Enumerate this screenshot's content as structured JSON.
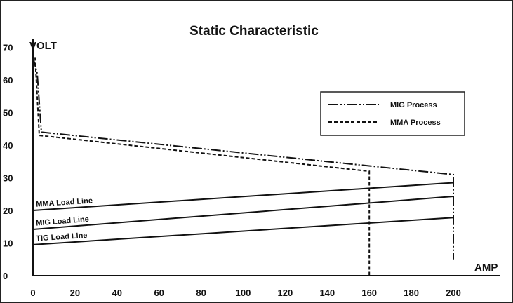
{
  "chart_data": {
    "type": "line",
    "title": "Static Characteristic",
    "xlabel": "AMP",
    "ylabel": "VOLT",
    "xlim": [
      0,
      210
    ],
    "ylim": [
      0,
      70
    ],
    "x_ticks": [
      0,
      20,
      40,
      60,
      80,
      100,
      120,
      140,
      160,
      180,
      200
    ],
    "y_ticks": [
      0,
      10,
      20,
      30,
      40,
      50,
      60,
      70
    ],
    "grid": false,
    "legend_position": "top-right",
    "series": [
      {
        "name": "MIG Process",
        "dash": "dash-dot-dot",
        "points": [
          [
            0,
            67
          ],
          [
            2,
            62
          ],
          [
            4,
            44
          ],
          [
            200,
            31
          ],
          [
            200,
            5
          ]
        ]
      },
      {
        "name": "MMA Process",
        "dash": "dashed",
        "points": [
          [
            1,
            67
          ],
          [
            3,
            43
          ],
          [
            160,
            32
          ],
          [
            160,
            0
          ]
        ]
      }
    ],
    "load_lines": [
      {
        "label": "MMA Load Line",
        "points": [
          [
            0,
            20
          ],
          [
            200,
            28.5
          ]
        ]
      },
      {
        "label": "MIG Load Line",
        "points": [
          [
            0,
            14.2
          ],
          [
            200,
            24.3
          ]
        ]
      },
      {
        "label": "TIG Load Line",
        "points": [
          [
            0,
            9.5
          ],
          [
            200,
            17.8
          ]
        ]
      }
    ]
  }
}
